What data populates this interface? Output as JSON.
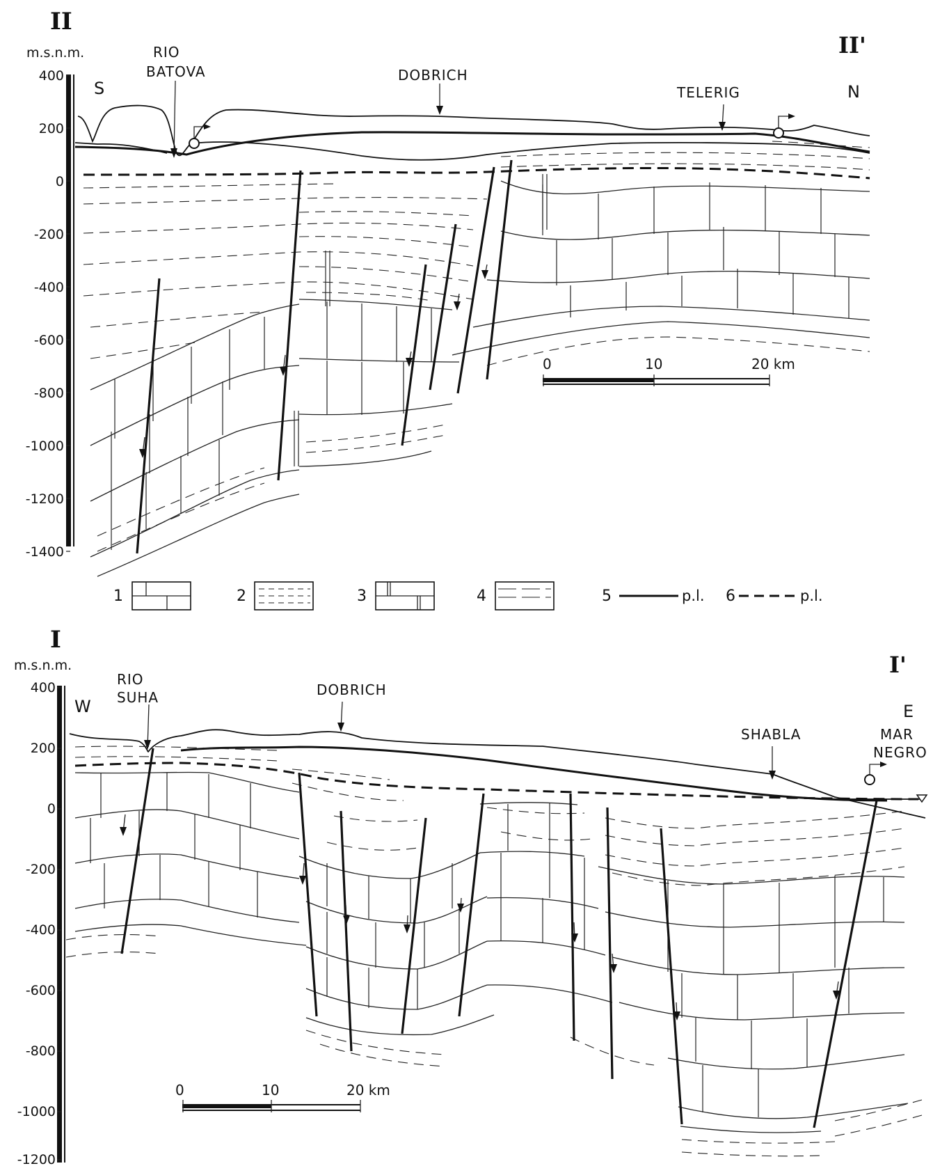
{
  "section_ii": {
    "id": "II",
    "id_end": "II'",
    "axis_unit": "m.s.n.m.",
    "ticks": [
      "400",
      "200",
      "0",
      "-200",
      "-400",
      "-600",
      "-800",
      "-1000",
      "-1200",
      "-1400"
    ],
    "dir_left": "S",
    "dir_right": "N",
    "places": {
      "rio_line1": "RIO",
      "rio_line2": "BATOVA",
      "dobrich": "DOBRICH",
      "telerig": "TELERIG"
    },
    "scale": {
      "labels": [
        "0",
        "10",
        "20 km"
      ]
    }
  },
  "legend": {
    "items": [
      {
        "num": "1",
        "pattern": "limestone"
      },
      {
        "num": "2",
        "pattern": "dashed"
      },
      {
        "num": "3",
        "pattern": "limestone-double-joint"
      },
      {
        "num": "4",
        "pattern": "long-dash"
      },
      {
        "num": "5",
        "pattern": "solid-line",
        "label": "p.l."
      },
      {
        "num": "6",
        "pattern": "dashed-line",
        "label": "p.l."
      }
    ]
  },
  "section_i": {
    "id": "I",
    "id_end": "I'",
    "axis_unit": "m.s.n.m.",
    "ticks": [
      "400",
      "200",
      "0",
      "-200",
      "-400",
      "-600",
      "-800",
      "-1000",
      "-1200"
    ],
    "dir_left": "W",
    "dir_right": "E",
    "places": {
      "rio_line1": "RIO",
      "rio_line2": "SUHA",
      "dobrich": "DOBRICH",
      "shabla": "SHABLA",
      "mar_line1": "MAR",
      "mar_line2": "NEGRO"
    },
    "scale": {
      "labels": [
        "0",
        "10",
        "20 km"
      ]
    }
  }
}
